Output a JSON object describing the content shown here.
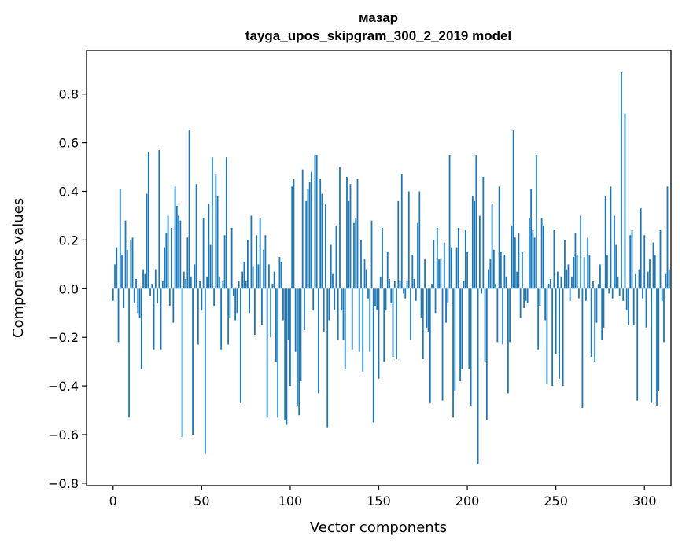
{
  "chart_data": {
    "type": "bar",
    "title": "мазар",
    "subtitle": "tayga_upos_skipgram_300_2_2019 model",
    "xlabel": "Vector components",
    "ylabel": "Components values",
    "xlim": [
      -15,
      315
    ],
    "ylim": [
      -0.81,
      0.98
    ],
    "xticks": [
      0,
      50,
      100,
      150,
      200,
      250,
      300
    ],
    "yticks": [
      -0.8,
      -0.6,
      -0.4,
      -0.2,
      0.0,
      0.2,
      0.4,
      0.6,
      0.8
    ],
    "ytick_labels": [
      "−0.8",
      "−0.6",
      "−0.4",
      "−0.2",
      "0.0",
      "0.2",
      "0.4",
      "0.6",
      "0.8"
    ],
    "bar_color": "#1f77b4",
    "grid": false,
    "values": [
      -0.05,
      0.1,
      0.17,
      -0.22,
      0.41,
      0.14,
      -0.08,
      0.28,
      0.16,
      -0.53,
      0.2,
      0.21,
      -0.06,
      0.04,
      -0.1,
      -0.12,
      -0.33,
      0.08,
      0.06,
      0.39,
      0.56,
      -0.03,
      0.02,
      -0.25,
      0.08,
      -0.06,
      0.57,
      -0.25,
      0.03,
      0.17,
      0.23,
      0.3,
      -0.07,
      0.25,
      -0.14,
      0.42,
      0.34,
      0.3,
      0.28,
      -0.61,
      0.07,
      0.04,
      0.21,
      0.65,
      0.05,
      -0.6,
      0.1,
      0.43,
      -0.23,
      0.03,
      -0.09,
      0.29,
      -0.68,
      0.05,
      0.35,
      0.18,
      0.54,
      -0.07,
      0.47,
      0.38,
      0.05,
      -0.25,
      0.03,
      0.22,
      0.54,
      -0.23,
      -0.12,
      0.25,
      -0.03,
      -0.13,
      -0.1,
      0.03,
      -0.47,
      0.07,
      0.11,
      0.03,
      0.2,
      -0.1,
      0.3,
      0.09,
      -0.19,
      0.22,
      0.1,
      0.29,
      -0.15,
      0.16,
      0.22,
      -0.53,
      0.1,
      -0.2,
      0.02,
      0.07,
      -0.3,
      -0.53,
      0.13,
      0.11,
      -0.13,
      -0.54,
      -0.56,
      -0.21,
      -0.4,
      0.42,
      0.45,
      -0.26,
      -0.48,
      -0.52,
      -0.38,
      0.49,
      -0.17,
      0.36,
      0.41,
      0.44,
      0.48,
      -0.09,
      0.55,
      0.55,
      -0.43,
      0.45,
      0.39,
      -0.18,
      0.35,
      -0.57,
      -0.13,
      0.18,
      0.06,
      -0.09,
      0.26,
      -0.21,
      0.5,
      -0.09,
      -0.21,
      -0.33,
      0.46,
      0.36,
      0.43,
      -0.25,
      0.27,
      0.29,
      0.45,
      -0.26,
      0.2,
      -0.34,
      0.12,
      0.08,
      -0.04,
      -0.26,
      0.28,
      -0.55,
      -0.07,
      -0.09,
      -0.37,
      0.05,
      0.25,
      -0.3,
      -0.09,
      0.15,
      0.04,
      -0.06,
      -0.28,
      0.03,
      -0.29,
      0.36,
      0.03,
      0.47,
      -0.02,
      -0.04,
      0.03,
      0.4,
      -0.21,
      0.14,
      0.04,
      -0.05,
      0.27,
      0.4,
      -0.12,
      -0.29,
      0.12,
      -0.16,
      -0.18,
      -0.47,
      0.02,
      0.2,
      -0.1,
      0.25,
      0.12,
      0.12,
      -0.46,
      0.19,
      -0.14,
      -0.06,
      0.55,
      0.17,
      -0.53,
      -0.42,
      0.17,
      0.25,
      -0.38,
      -0.33,
      0.03,
      0.24,
      0.15,
      -0.33,
      -0.48,
      0.38,
      0.36,
      0.55,
      -0.72,
      0.3,
      -0.02,
      0.46,
      -0.3,
      -0.54,
      0.08,
      0.12,
      0.35,
      0.16,
      0.02,
      -0.22,
      0.42,
      0.15,
      -0.23,
      0.14,
      0.05,
      -0.43,
      -0.22,
      0.26,
      0.65,
      0.21,
      0.07,
      0.23,
      -0.12,
      0.15,
      -0.08,
      -0.05,
      -0.06,
      0.29,
      0.41,
      0.24,
      0.21,
      0.55,
      -0.25,
      -0.07,
      0.29,
      0.26,
      -0.13,
      -0.39,
      0.02,
      0.04,
      -0.4,
      0.24,
      -0.27,
      0.07,
      -0.37,
      0.05,
      -0.4,
      0.2,
      0.08,
      0.1,
      -0.05,
      0.05,
      0.13,
      0.23,
      0.14,
      -0.04,
      0.3,
      -0.49,
      0.13,
      -0.05,
      0.21,
      0.14,
      -0.28,
      0.03,
      -0.3,
      -0.14,
      0.02,
      0.1,
      -0.21,
      -0.16,
      0.38,
      0.14,
      -0.02,
      0.42,
      -0.04,
      0.3,
      0.18,
      0.05,
      -0.03,
      0.89,
      -0.05,
      0.72,
      -0.09,
      -0.15,
      0.22,
      0.24,
      -0.15,
      0.06,
      -0.46,
      0.08,
      0.33,
      -0.04,
      0.22,
      -0.16,
      0.07,
      0.12,
      -0.47,
      0.19,
      0.14,
      -0.48,
      -0.42,
      0.24,
      -0.05,
      -0.22,
      0.06,
      0.42,
      0.08
    ]
  }
}
